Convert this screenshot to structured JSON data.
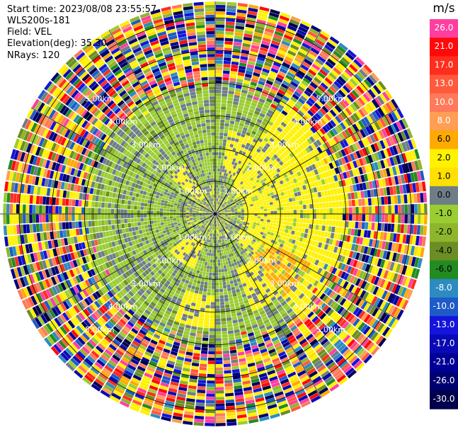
{
  "header": {
    "start_time": "Start time: 2023/08/08 23:55:57",
    "instrument": "WLS200s-181",
    "field": "Field: VEL",
    "elevation": "Elevation(deg): 35.30",
    "nrays": "NRays: 120"
  },
  "colorbar": {
    "unit": "m/s",
    "levels": [
      {
        "label": "26.0",
        "color": "#ff3fa0"
      },
      {
        "label": "21.0",
        "color": "#ff0a0a"
      },
      {
        "label": "17.0",
        "color": "#ff2d1e"
      },
      {
        "label": "13.0",
        "color": "#ff5a3c"
      },
      {
        "label": "10.0",
        "color": "#ff7a5a"
      },
      {
        "label": "8.0",
        "color": "#ff9e55"
      },
      {
        "label": "6.0",
        "color": "#ffaa00"
      },
      {
        "label": "2.0",
        "color": "#fff200"
      },
      {
        "label": "1.0",
        "color": "#ffe000"
      },
      {
        "label": "0.0",
        "color": "#6e7e86"
      },
      {
        "label": "-1.0",
        "color": "#9acd32"
      },
      {
        "label": "-2.0",
        "color": "#8db62c"
      },
      {
        "label": "-4.0",
        "color": "#6b8e23"
      },
      {
        "label": "-6.0",
        "color": "#228b22"
      },
      {
        "label": "-8.0",
        "color": "#2e8bc0"
      },
      {
        "label": "-10.0",
        "color": "#1e5ac8"
      },
      {
        "label": "-13.0",
        "color": "#1414dc"
      },
      {
        "label": "-17.0",
        "color": "#0a0ab4"
      },
      {
        "label": "-21.0",
        "color": "#000096"
      },
      {
        "label": "-26.0",
        "color": "#000070"
      },
      {
        "label": "-30.0",
        "color": "#00004a"
      }
    ]
  },
  "chart_data": {
    "type": "heatmap",
    "projection": "polar-ppi",
    "field": "VEL",
    "units": "m/s",
    "nrays": 120,
    "range_km_max": 6.5,
    "range_rings_km": [
      1,
      2,
      3,
      4,
      5,
      6
    ],
    "ring_labels": [
      "1.00km",
      "2.00km",
      "3.00km",
      "4.00km",
      "5.00km"
    ],
    "radials_deg": [
      0,
      30,
      60,
      90,
      120,
      150,
      180,
      210,
      240,
      270,
      300,
      330
    ],
    "color_levels": [
      -30,
      -26,
      -21,
      -17,
      -13,
      -10,
      -8,
      -6,
      -4,
      -2,
      -1,
      0,
      1,
      2,
      6,
      8,
      10,
      13,
      17,
      21,
      26
    ],
    "regions": [
      {
        "sector": "east",
        "range_km": [
          1.0,
          3.8
        ],
        "velocity": 2.0
      },
      {
        "sector": "southeast",
        "range_km": [
          1.8,
          3.2
        ],
        "velocity": 6.0
      },
      {
        "sector": "north",
        "range_km": [
          0.8,
          3.5
        ],
        "velocity": -1.0
      },
      {
        "sector": "west",
        "range_km": [
          0.8,
          3.5
        ],
        "velocity": -1.0
      },
      {
        "sector": "southwest",
        "range_km": [
          0.8,
          3.5
        ],
        "velocity": -2.0
      },
      {
        "sector": "all",
        "range_km": [
          4.0,
          6.5
        ],
        "velocity": "noise"
      }
    ]
  }
}
